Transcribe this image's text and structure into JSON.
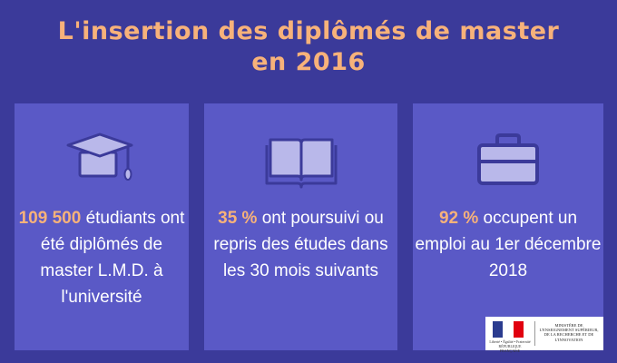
{
  "title": {
    "line1": "L'insertion des diplômés de master",
    "line2": "en 2016"
  },
  "cards": [
    {
      "icon": "graduation-cap-icon",
      "number": "109 500",
      "text": " étudiants ont été diplômés de master L.M.D. à l'université"
    },
    {
      "icon": "open-book-icon",
      "number": "35 %",
      "text": " ont poursuivi ou repris des études dans les 30 mois suivants"
    },
    {
      "icon": "briefcase-icon",
      "number": "92 %",
      "text": " occupent un emploi au 1er décembre 2018"
    }
  ],
  "logo": {
    "republic": "Liberté • Égalité • Fraternité RÉPUBLIQUE FRANÇAISE",
    "ministry": "MINISTÈRE DE L'ENSEIGNEMENT SUPÉRIEUR, DE LA RECHERCHE ET DE L'INNOVATION"
  },
  "colors": {
    "background": "#3b3a9a",
    "card": "#5a59c6",
    "accent": "#f7b27a",
    "icon_fill": "#b9b8ea",
    "icon_stroke": "#3b3a9a"
  }
}
